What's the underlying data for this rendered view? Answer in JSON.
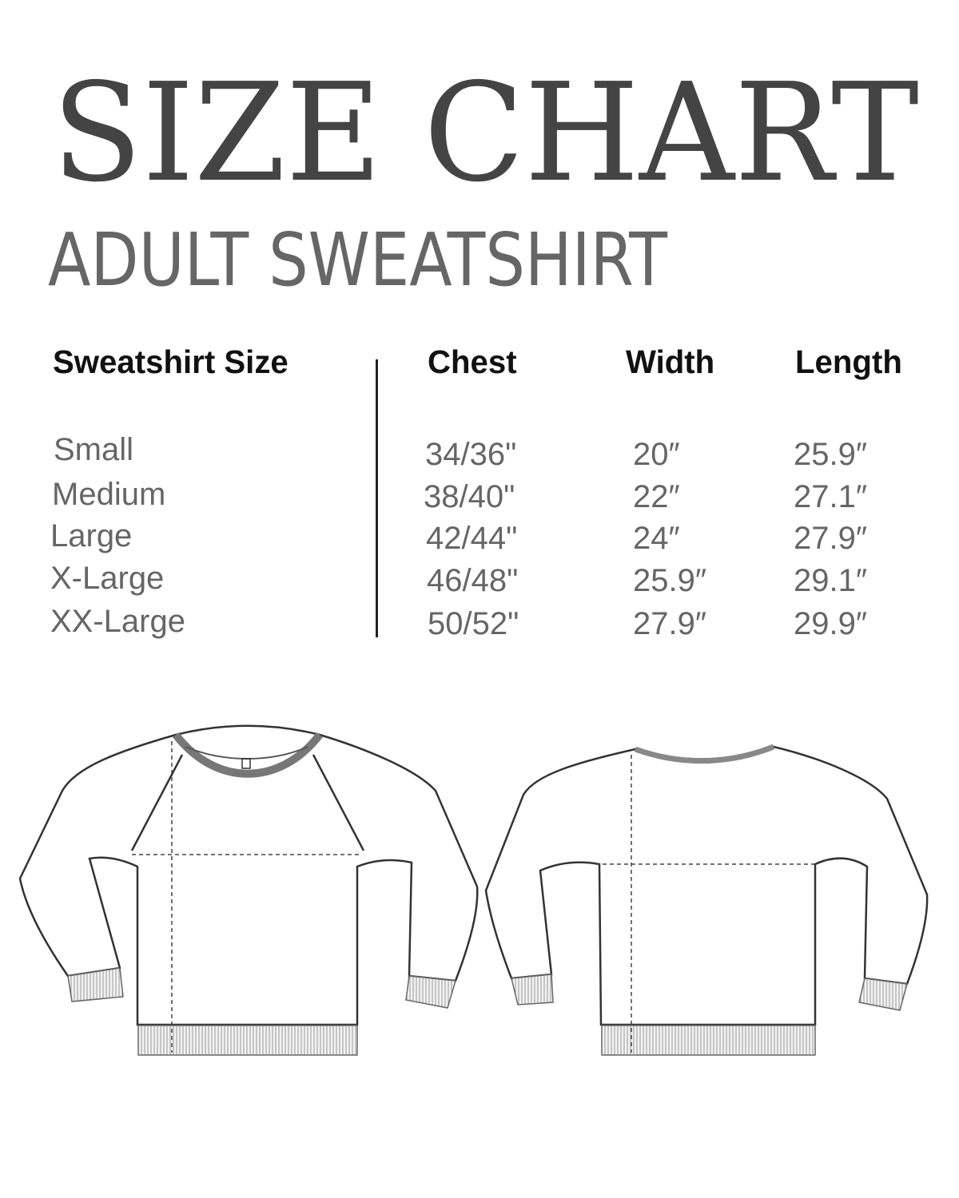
{
  "title": "SIZE CHART",
  "subtitle": "ADULT SWEATSHIRT",
  "table": {
    "headers": [
      "Sweatshirt Size",
      "Chest",
      "Width",
      "Length"
    ],
    "rows": [
      {
        "size": "Small",
        "chest": "34/36\"",
        "width": "20″",
        "length": "25.9″"
      },
      {
        "size": "Medium",
        "chest": "38/40\"",
        "width": "22″",
        "length": "27.1″"
      },
      {
        "size": "Large",
        "chest": "42/44\"",
        "width": "24″",
        "length": "27.9″"
      },
      {
        "size": "X-Large",
        "chest": "46/48\"",
        "width": "25.9″",
        "length": "29.1″"
      },
      {
        "size": "XX-Large",
        "chest": "50/52\"",
        "width": "27.9″",
        "length": "29.9″"
      }
    ]
  },
  "colors": {
    "title": "#444444",
    "subtitle": "#666666",
    "header": "#111111",
    "values": "#666666"
  }
}
